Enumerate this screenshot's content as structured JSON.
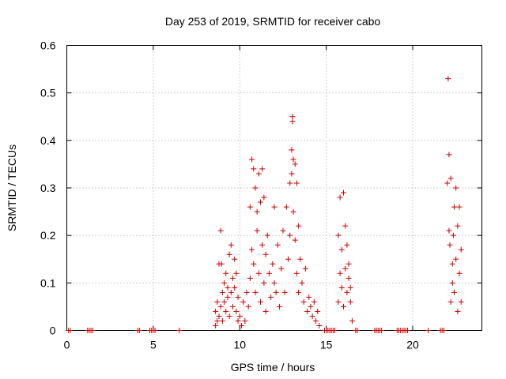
{
  "chart_data": {
    "type": "scatter",
    "title": "Day 253 of 2019, SRMTID for receiver cabo",
    "xlabel": "GPS time / hours",
    "ylabel": "SRMTID / TECUs",
    "xlim": [
      0,
      24
    ],
    "ylim": [
      0,
      0.6
    ],
    "xticks": [
      0,
      5,
      10,
      15,
      20
    ],
    "yticks": [
      0,
      0.1,
      0.2,
      0.3,
      0.4,
      0.5,
      0.6
    ],
    "xtick_labels": [
      "0",
      "5",
      "10",
      "15",
      "20"
    ],
    "ytick_labels": [
      "0",
      "0.1",
      "0.2",
      "0.3",
      "0.4",
      "0.5",
      "0.6"
    ],
    "grid": true,
    "marker": "+",
    "color": "#cc0000",
    "series": [
      {
        "name": "SRMTID",
        "points": [
          [
            0.1,
            0
          ],
          [
            0.2,
            0
          ],
          [
            1.2,
            0
          ],
          [
            1.3,
            0
          ],
          [
            1.4,
            0
          ],
          [
            1.5,
            0
          ],
          [
            4.1,
            0
          ],
          [
            4.2,
            0
          ],
          [
            4.8,
            0
          ],
          [
            4.9,
            0
          ],
          [
            5.0,
            0
          ],
          [
            5.1,
            0
          ],
          [
            6.5,
            0
          ],
          [
            8.6,
            0.01
          ],
          [
            8.6,
            0.04
          ],
          [
            8.7,
            0.02
          ],
          [
            8.7,
            0.06
          ],
          [
            8.8,
            0.03
          ],
          [
            8.8,
            0.14
          ],
          [
            8.9,
            0.05
          ],
          [
            8.9,
            0.21
          ],
          [
            8.95,
            0.14
          ],
          [
            9.0,
            0.08
          ],
          [
            9.0,
            0.02
          ],
          [
            9.1,
            0.06
          ],
          [
            9.1,
            0.1
          ],
          [
            9.2,
            0.04
          ],
          [
            9.2,
            0.12
          ],
          [
            9.3,
            0.07
          ],
          [
            9.3,
            0.09
          ],
          [
            9.4,
            0.03
          ],
          [
            9.4,
            0.16
          ],
          [
            9.5,
            0.08
          ],
          [
            9.5,
            0.18
          ],
          [
            9.6,
            0.11
          ],
          [
            9.6,
            0.05
          ],
          [
            9.7,
            0.09
          ],
          [
            9.7,
            0.15
          ],
          [
            9.8,
            0.04
          ],
          [
            9.8,
            0.12
          ],
          [
            9.9,
            0.07
          ],
          [
            9.9,
            0.02
          ],
          [
            10.0,
            0.03
          ],
          [
            10.1,
            0.01
          ],
          [
            10.2,
            0.06
          ],
          [
            10.3,
            0.02
          ],
          [
            10.4,
            0.08
          ],
          [
            10.5,
            0.05
          ],
          [
            10.6,
            0.11
          ],
          [
            10.6,
            0.26
          ],
          [
            10.7,
            0.36
          ],
          [
            10.7,
            0.17
          ],
          [
            10.8,
            0.34
          ],
          [
            10.8,
            0.14
          ],
          [
            10.9,
            0.3
          ],
          [
            10.9,
            0.08
          ],
          [
            11.0,
            0.25
          ],
          [
            11.0,
            0.21
          ],
          [
            11.1,
            0.33
          ],
          [
            11.1,
            0.12
          ],
          [
            11.2,
            0.27
          ],
          [
            11.2,
            0.06
          ],
          [
            11.3,
            0.34
          ],
          [
            11.3,
            0.18
          ],
          [
            11.4,
            0.28
          ],
          [
            11.4,
            0.1
          ],
          [
            11.5,
            0.16
          ],
          [
            11.5,
            0.04
          ],
          [
            11.6,
            0.2
          ],
          [
            11.7,
            0.12
          ],
          [
            11.8,
            0.07
          ],
          [
            11.9,
            0.14
          ],
          [
            12.0,
            0.26
          ],
          [
            12.0,
            0.1
          ],
          [
            12.1,
            0.08
          ],
          [
            12.2,
            0.18
          ],
          [
            12.3,
            0.05
          ],
          [
            12.4,
            0.13
          ],
          [
            12.5,
            0.21
          ],
          [
            12.6,
            0.08
          ],
          [
            12.7,
            0.26
          ],
          [
            12.8,
            0.15
          ],
          [
            12.9,
            0.31
          ],
          [
            12.9,
            0.2
          ],
          [
            13.0,
            0.38
          ],
          [
            13.0,
            0.33
          ],
          [
            13.05,
            0.44
          ],
          [
            13.05,
            0.45
          ],
          [
            13.1,
            0.36
          ],
          [
            13.1,
            0.25
          ],
          [
            13.2,
            0.35
          ],
          [
            13.2,
            0.19
          ],
          [
            13.3,
            0.31
          ],
          [
            13.3,
            0.12
          ],
          [
            13.4,
            0.22
          ],
          [
            13.4,
            0.08
          ],
          [
            13.5,
            0.15
          ],
          [
            13.6,
            0.1
          ],
          [
            13.7,
            0.06
          ],
          [
            13.8,
            0.13
          ],
          [
            13.9,
            0.04
          ],
          [
            14.0,
            0.07
          ],
          [
            14.1,
            0.05
          ],
          [
            14.2,
            0.03
          ],
          [
            14.3,
            0.06
          ],
          [
            14.4,
            0.02
          ],
          [
            14.5,
            0.04
          ],
          [
            14.6,
            0.01
          ],
          [
            14.9,
            0
          ],
          [
            15.0,
            0
          ],
          [
            15.1,
            0
          ],
          [
            15.2,
            0
          ],
          [
            15.3,
            0
          ],
          [
            15.4,
            0
          ],
          [
            15.5,
            0
          ],
          [
            15.7,
            0.06
          ],
          [
            15.7,
            0.2
          ],
          [
            15.8,
            0.28
          ],
          [
            15.8,
            0.12
          ],
          [
            15.9,
            0.09
          ],
          [
            15.9,
            0.17
          ],
          [
            16.0,
            0.29
          ],
          [
            16.0,
            0.05
          ],
          [
            16.1,
            0.22
          ],
          [
            16.1,
            0.13
          ],
          [
            16.2,
            0.18
          ],
          [
            16.2,
            0.08
          ],
          [
            16.3,
            0.11
          ],
          [
            16.3,
            0.14
          ],
          [
            16.4,
            0.06
          ],
          [
            16.4,
            0.09
          ],
          [
            16.5,
            0.02
          ],
          [
            16.7,
            0
          ],
          [
            16.8,
            0
          ],
          [
            17.8,
            0
          ],
          [
            17.9,
            0
          ],
          [
            18.0,
            0
          ],
          [
            18.1,
            0
          ],
          [
            18.2,
            0
          ],
          [
            19.1,
            0
          ],
          [
            19.2,
            0
          ],
          [
            19.3,
            0
          ],
          [
            19.4,
            0
          ],
          [
            19.5,
            0
          ],
          [
            19.6,
            0
          ],
          [
            19.7,
            0
          ],
          [
            20.9,
            0
          ],
          [
            21.6,
            0
          ],
          [
            21.7,
            0
          ],
          [
            21.8,
            0
          ],
          [
            22.0,
            0.31
          ],
          [
            22.05,
            0.53
          ],
          [
            22.1,
            0.37
          ],
          [
            22.1,
            0.21
          ],
          [
            22.15,
            0.18
          ],
          [
            22.2,
            0.32
          ],
          [
            22.2,
            0.06
          ],
          [
            22.3,
            0.14
          ],
          [
            22.3,
            0.1
          ],
          [
            22.35,
            0.2
          ],
          [
            22.4,
            0.26
          ],
          [
            22.4,
            0.08
          ],
          [
            22.5,
            0.3
          ],
          [
            22.5,
            0.15
          ],
          [
            22.6,
            0.22
          ],
          [
            22.6,
            0.04
          ],
          [
            22.7,
            0.26
          ],
          [
            22.7,
            0.12
          ],
          [
            22.8,
            0.17
          ],
          [
            22.8,
            0.06
          ]
        ]
      }
    ]
  }
}
